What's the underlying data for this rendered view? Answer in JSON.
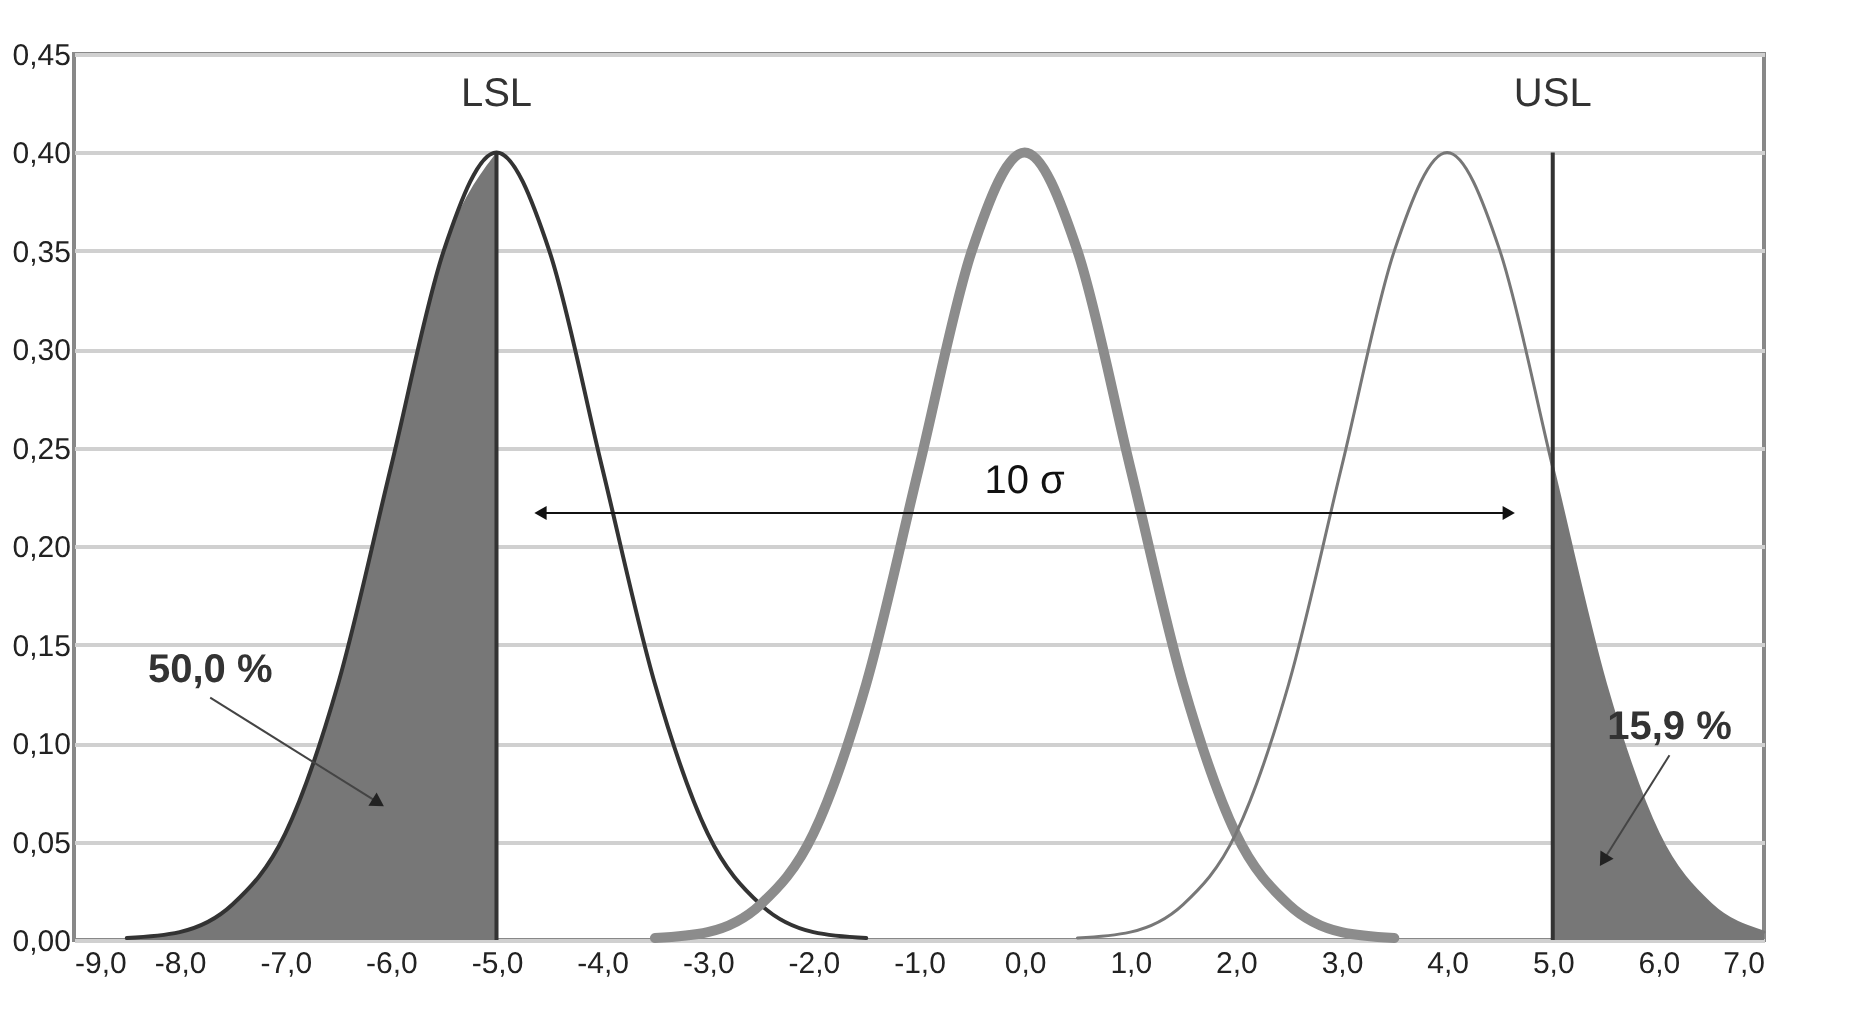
{
  "chart_data": {
    "type": "line",
    "xlim": [
      -9,
      7
    ],
    "ylim": [
      0,
      0.45
    ],
    "xticks": [
      {
        "value": -9,
        "label": "-9,0"
      },
      {
        "value": -8,
        "label": "-8,0"
      },
      {
        "value": -7,
        "label": "-7,0"
      },
      {
        "value": -6,
        "label": "-6,0"
      },
      {
        "value": -5,
        "label": "-5,0"
      },
      {
        "value": -4,
        "label": "-4,0"
      },
      {
        "value": -3,
        "label": "-3,0"
      },
      {
        "value": -2,
        "label": "-2,0"
      },
      {
        "value": -1,
        "label": "-1,0"
      },
      {
        "value": 0,
        "label": "0,0"
      },
      {
        "value": 1,
        "label": "1,0"
      },
      {
        "value": 2,
        "label": "2,0"
      },
      {
        "value": 3,
        "label": "3,0"
      },
      {
        "value": 4,
        "label": "4,0"
      },
      {
        "value": 5,
        "label": "5,0"
      },
      {
        "value": 6,
        "label": "6,0"
      },
      {
        "value": 7,
        "label": "7,0"
      }
    ],
    "yticks": [
      {
        "value": 0,
        "label": "0,00"
      },
      {
        "value": 0.05,
        "label": "0,05"
      },
      {
        "value": 0.1,
        "label": "0,10"
      },
      {
        "value": 0.15,
        "label": "0,15"
      },
      {
        "value": 0.2,
        "label": "0,20"
      },
      {
        "value": 0.25,
        "label": "0,25"
      },
      {
        "value": 0.3,
        "label": "0,30"
      },
      {
        "value": 0.35,
        "label": "0,35"
      },
      {
        "value": 0.4,
        "label": "0,40"
      },
      {
        "value": 0.45,
        "label": "0,45"
      }
    ],
    "grid": "y",
    "series": [
      {
        "type": "area",
        "color": "#777777",
        "x": [
          -8.5,
          -8.0,
          -7.5,
          -7.0,
          -6.5,
          -6.0,
          -5.5,
          -5.0
        ],
        "values": [
          0.001,
          0.004,
          0.018,
          0.054,
          0.13,
          0.24,
          0.35,
          0.4
        ]
      },
      {
        "type": "area",
        "color": "#777777",
        "x": [
          5.0,
          5.5,
          6.0,
          6.5,
          7.0
        ],
        "values": [
          0.24,
          0.13,
          0.054,
          0.018,
          0.004
        ]
      },
      {
        "type": "line",
        "color": "#333333",
        "x": [
          -8.5,
          -8.0,
          -7.5,
          -7.0,
          -6.5,
          -6.0,
          -5.5,
          -5.0,
          -4.5,
          -4.0,
          -3.5,
          -3.0,
          -2.5,
          -2.0,
          -1.5
        ],
        "values": [
          0.001,
          0.004,
          0.018,
          0.054,
          0.13,
          0.24,
          0.35,
          0.4,
          0.35,
          0.24,
          0.13,
          0.054,
          0.018,
          0.004,
          0.001
        ]
      },
      {
        "type": "line",
        "color": "#8c8c8c",
        "x": [
          -3.5,
          -3.0,
          -2.5,
          -2.0,
          -1.5,
          -1.0,
          -0.5,
          0.0,
          0.5,
          1.0,
          1.5,
          2.0,
          2.5,
          3.0,
          3.5
        ],
        "values": [
          0.001,
          0.004,
          0.018,
          0.054,
          0.13,
          0.24,
          0.35,
          0.4,
          0.35,
          0.24,
          0.13,
          0.054,
          0.018,
          0.004,
          0.001
        ]
      },
      {
        "type": "line",
        "color": "#777777",
        "x": [
          0.5,
          1.0,
          1.5,
          2.0,
          2.5,
          3.0,
          3.5,
          4.0,
          4.5,
          5.0,
          5.5,
          6.0,
          6.5,
          7.0
        ],
        "values": [
          0.001,
          0.004,
          0.018,
          0.054,
          0.13,
          0.24,
          0.35,
          0.4,
          0.35,
          0.24,
          0.13,
          0.054,
          0.018,
          0.004
        ]
      }
    ],
    "ref_lines": [
      {
        "axis": "x",
        "value": -5,
        "label": "LSL",
        "color": "#333333"
      },
      {
        "axis": "x",
        "value": 5,
        "label": "USL",
        "color": "#333333"
      }
    ],
    "annotations": [
      "50,0 %",
      "15,9 %",
      "10 σ"
    ],
    "marker": "none"
  }
}
